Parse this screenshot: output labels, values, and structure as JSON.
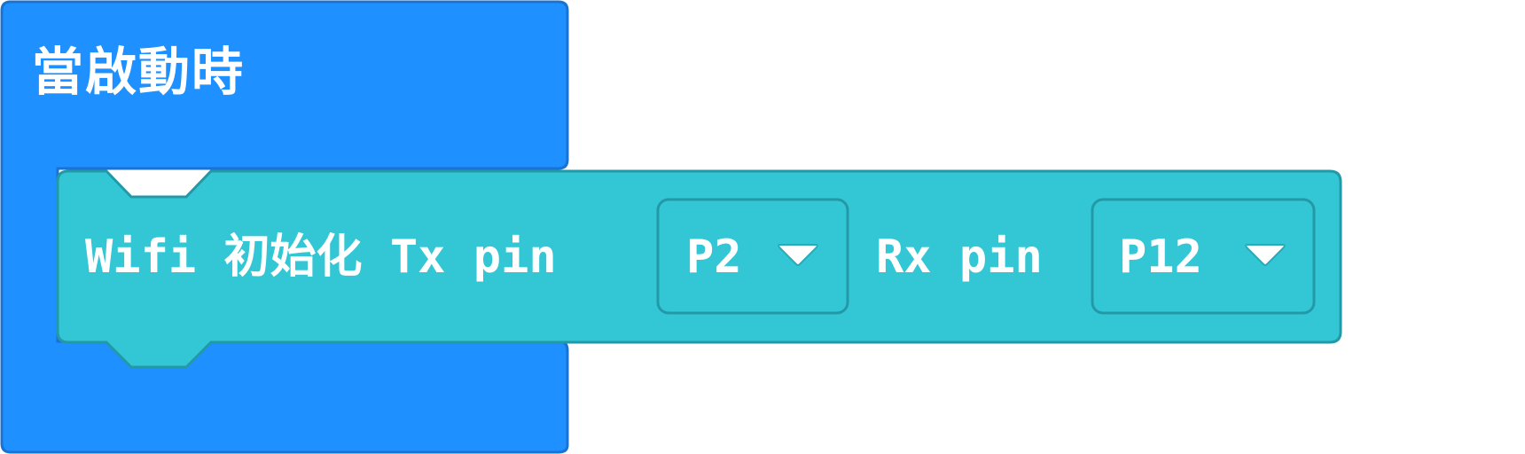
{
  "on_start_block": {
    "label": "當啟動時",
    "color": "#1e90ff",
    "border_color": "#1a72d1"
  },
  "wifi_init_block": {
    "label_prefix": "Wifi 初始化 Tx pin",
    "label_middle": "Rx pin",
    "color": "#33c7d6",
    "border_color": "#2399a8",
    "tx_pin": {
      "value": "P2",
      "icon": "caret-down-icon"
    },
    "rx_pin": {
      "value": "P12",
      "icon": "caret-down-icon"
    }
  }
}
